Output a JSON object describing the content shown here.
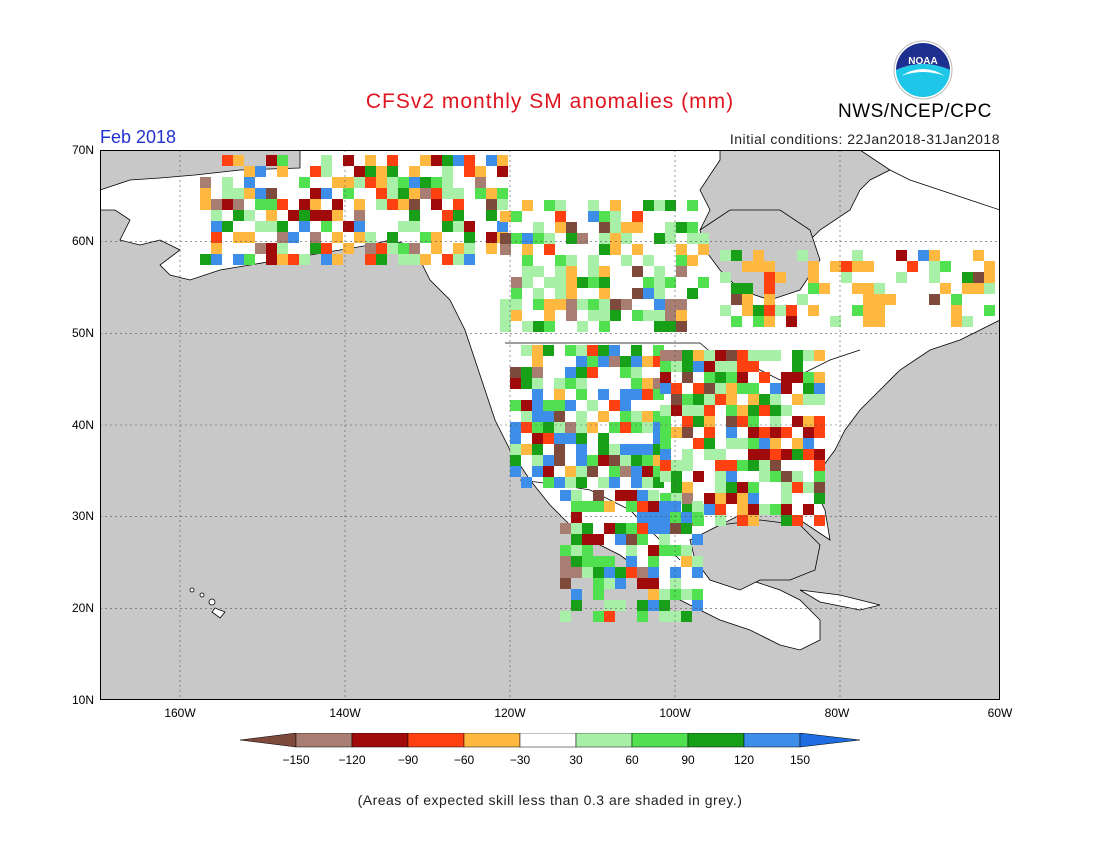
{
  "header": {
    "title": "CFSv2 monthly SM anomalies (mm)",
    "month": "Feb 2018",
    "initial_conditions": "Initial conditions: 22Jan2018-31Jan2018",
    "agency": "NWS/NCEP/CPC",
    "logo_text": "NOAA"
  },
  "map": {
    "lat_labels": [
      "70N",
      "60N",
      "50N",
      "40N",
      "30N",
      "20N",
      "10N"
    ],
    "lon_labels": [
      "160W",
      "140W",
      "120W",
      "100W",
      "80W",
      "60W"
    ],
    "ocean_color": "#c8c8c8",
    "land_color": "#ffffff",
    "border_color": "#000000"
  },
  "legend": {
    "colors": [
      "#7d4a3c",
      "#a87e72",
      "#a10a0a",
      "#ff4010",
      "#ffb840",
      "#ffffff",
      "#a8f0a8",
      "#50e050",
      "#18a018",
      "#3c8ee8",
      "#1e6ce0"
    ],
    "labels": [
      "−150",
      "−120",
      "−90",
      "−60",
      "−30",
      "30",
      "60",
      "90",
      "120",
      "150"
    ]
  },
  "footnote": "(Areas of expected skill less than 0.3 are shaded in grey.)"
}
